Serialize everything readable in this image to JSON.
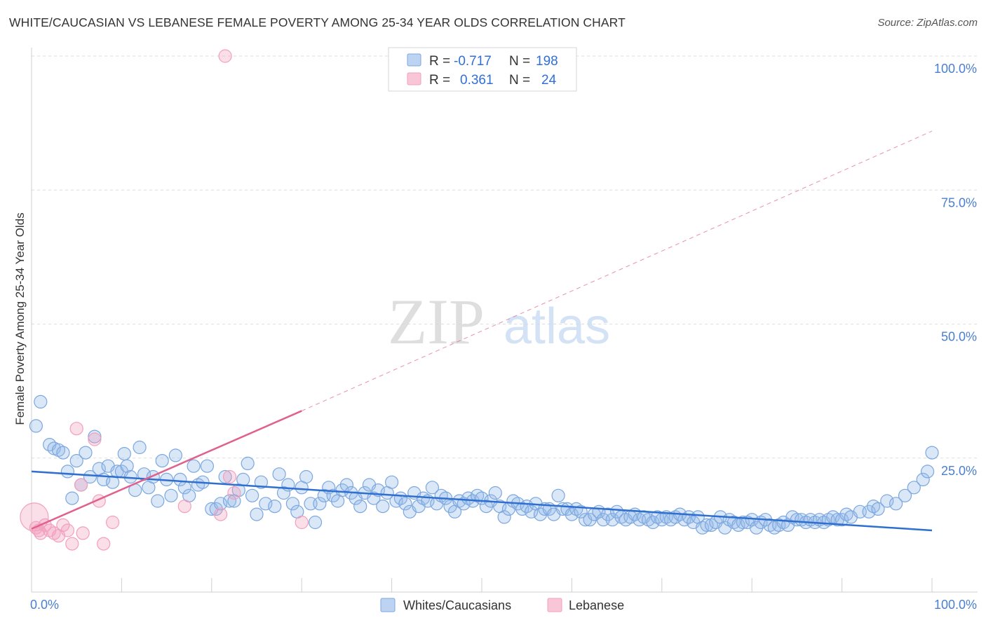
{
  "title": "WHITE/CAUCASIAN VS LEBANESE FEMALE POVERTY AMONG 25-34 YEAR OLDS CORRELATION CHART",
  "source": "Source: ZipAtlas.com",
  "watermark": {
    "zip": "ZIP",
    "atlas": "atlas"
  },
  "chart_data": {
    "type": "scatter",
    "title": "WHITE/CAUCASIAN VS LEBANESE FEMALE POVERTY AMONG 25-34 YEAR OLDS CORRELATION CHART",
    "xlabel": "",
    "ylabel": "Female Poverty Among 25-34 Year Olds",
    "xlim": [
      0,
      100
    ],
    "ylim": [
      0,
      100
    ],
    "x_tick_labels": [
      "0.0%",
      "100.0%"
    ],
    "y_ticks": [
      {
        "value": 25,
        "label": "25.0%"
      },
      {
        "value": 50,
        "label": "50.0%"
      },
      {
        "value": 75,
        "label": "75.0%"
      },
      {
        "value": 100,
        "label": "100.0%"
      }
    ],
    "grid": "horizontal-dashed",
    "legend_position": "top-center",
    "stats": [
      {
        "r_label": "R =",
        "r_value": "-0.717",
        "n_label": "N =",
        "n_value": "198"
      },
      {
        "r_label": "R =",
        "r_value": "0.361",
        "n_label": "N =",
        "n_value": "24"
      }
    ],
    "series": [
      {
        "name": "Whites/Caucasians",
        "color": "#7ba7e0",
        "line_color": "#2f6fd0",
        "trend": {
          "x0": 0,
          "y0": 22.5,
          "x1": 100,
          "y1": 11.5
        },
        "points": [
          [
            0.5,
            31
          ],
          [
            1,
            35.5
          ],
          [
            2,
            27.5
          ],
          [
            2.5,
            26.8
          ],
          [
            3,
            26.5
          ],
          [
            3.5,
            26
          ],
          [
            4,
            22.5
          ],
          [
            4.5,
            17.5
          ],
          [
            5,
            24.5
          ],
          [
            5.5,
            20
          ],
          [
            6,
            26
          ],
          [
            6.5,
            21.5
          ],
          [
            7,
            29
          ],
          [
            7.5,
            23
          ],
          [
            8,
            21
          ],
          [
            8.5,
            23.5
          ],
          [
            9,
            20.5
          ],
          [
            9.5,
            22.5
          ],
          [
            10,
            22.5
          ],
          [
            10.3,
            25.8
          ],
          [
            10.6,
            23.5
          ],
          [
            11,
            21.5
          ],
          [
            11.5,
            19
          ],
          [
            12,
            27
          ],
          [
            12.5,
            22
          ],
          [
            13,
            19.5
          ],
          [
            13.5,
            21.5
          ],
          [
            14,
            17
          ],
          [
            14.5,
            24.5
          ],
          [
            15,
            21
          ],
          [
            15.5,
            18
          ],
          [
            16,
            25.5
          ],
          [
            16.5,
            21
          ],
          [
            17,
            19.5
          ],
          [
            17.5,
            18
          ],
          [
            18,
            23.5
          ],
          [
            18.5,
            20
          ],
          [
            19,
            20.5
          ],
          [
            19.5,
            23.5
          ],
          [
            20,
            15.5
          ],
          [
            20.5,
            15.5
          ],
          [
            21,
            16.5
          ],
          [
            21.5,
            21.5
          ],
          [
            22,
            17
          ],
          [
            22.5,
            17
          ],
          [
            23,
            19
          ],
          [
            23.5,
            21
          ],
          [
            24,
            24
          ],
          [
            24.5,
            18
          ],
          [
            25,
            14.5
          ],
          [
            25.5,
            20.5
          ],
          [
            26,
            16.5
          ],
          [
            27,
            16
          ],
          [
            27.5,
            22
          ],
          [
            28,
            18.5
          ],
          [
            28.5,
            20
          ],
          [
            29,
            16.5
          ],
          [
            29.5,
            15
          ],
          [
            30,
            19.5
          ],
          [
            30.5,
            21.5
          ],
          [
            31,
            16.5
          ],
          [
            31.5,
            13
          ],
          [
            32,
            16.5
          ],
          [
            32.5,
            18
          ],
          [
            33,
            19.5
          ],
          [
            33.5,
            18
          ],
          [
            34,
            17
          ],
          [
            34.5,
            19
          ],
          [
            35,
            20
          ],
          [
            35.5,
            18.5
          ],
          [
            36,
            17.5
          ],
          [
            36.5,
            16
          ],
          [
            37,
            18.5
          ],
          [
            37.5,
            20
          ],
          [
            38,
            17.5
          ],
          [
            38.5,
            19
          ],
          [
            39,
            16
          ],
          [
            39.5,
            18.5
          ],
          [
            40,
            20.5
          ],
          [
            40.5,
            17
          ],
          [
            41,
            17.5
          ],
          [
            41.5,
            16.5
          ],
          [
            42,
            15
          ],
          [
            42.5,
            18.5
          ],
          [
            43,
            16
          ],
          [
            43.5,
            17.5
          ],
          [
            44,
            17
          ],
          [
            44.5,
            19.5
          ],
          [
            45,
            16.5
          ],
          [
            45.5,
            18
          ],
          [
            46,
            17.5
          ],
          [
            46.5,
            16
          ],
          [
            47,
            15
          ],
          [
            47.5,
            17
          ],
          [
            48,
            16.5
          ],
          [
            48.5,
            17.5
          ],
          [
            49,
            17
          ],
          [
            49.5,
            18
          ],
          [
            50,
            17.5
          ],
          [
            50.5,
            16
          ],
          [
            51,
            17
          ],
          [
            51.5,
            18.5
          ],
          [
            52,
            16
          ],
          [
            52.5,
            14
          ],
          [
            53,
            15.5
          ],
          [
            53.5,
            17
          ],
          [
            54,
            16.5
          ],
          [
            54.5,
            15.5
          ],
          [
            55,
            16
          ],
          [
            55.5,
            15
          ],
          [
            56,
            16.5
          ],
          [
            56.5,
            14.5
          ],
          [
            57,
            15.5
          ],
          [
            57.5,
            15.5
          ],
          [
            58,
            14.5
          ],
          [
            58.5,
            18
          ],
          [
            59,
            15.5
          ],
          [
            59.5,
            15.5
          ],
          [
            60,
            14.5
          ],
          [
            60.5,
            15.5
          ],
          [
            61,
            15
          ],
          [
            61.5,
            13.5
          ],
          [
            62,
            13.5
          ],
          [
            62.5,
            14.5
          ],
          [
            63,
            15
          ],
          [
            63.5,
            13.5
          ],
          [
            64,
            14.5
          ],
          [
            64.5,
            13.5
          ],
          [
            65,
            15
          ],
          [
            65.5,
            14
          ],
          [
            66,
            13.5
          ],
          [
            66.5,
            14
          ],
          [
            67,
            14.5
          ],
          [
            67.5,
            13.5
          ],
          [
            68,
            14
          ],
          [
            68.5,
            13.5
          ],
          [
            69,
            13
          ],
          [
            69.5,
            14
          ],
          [
            70,
            13.5
          ],
          [
            70.5,
            14
          ],
          [
            71,
            13.5
          ],
          [
            71.5,
            14
          ],
          [
            72,
            14.5
          ],
          [
            72.5,
            13.5
          ],
          [
            73,
            14
          ],
          [
            73.5,
            13
          ],
          [
            74,
            14
          ],
          [
            74.5,
            12
          ],
          [
            75,
            12.5
          ],
          [
            75.5,
            12.5
          ],
          [
            76,
            13
          ],
          [
            76.5,
            14
          ],
          [
            77,
            12
          ],
          [
            77.5,
            13.5
          ],
          [
            78,
            13
          ],
          [
            78.5,
            12.5
          ],
          [
            79,
            13
          ],
          [
            79.5,
            13
          ],
          [
            80,
            13.5
          ],
          [
            80.5,
            12
          ],
          [
            81,
            13
          ],
          [
            81.5,
            13.5
          ],
          [
            82,
            12.5
          ],
          [
            82.5,
            12
          ],
          [
            83,
            12.5
          ],
          [
            83.5,
            13
          ],
          [
            84,
            12.5
          ],
          [
            84.5,
            14
          ],
          [
            85,
            13.5
          ],
          [
            85.5,
            13.5
          ],
          [
            86,
            13
          ],
          [
            86.5,
            13.5
          ],
          [
            87,
            13
          ],
          [
            87.5,
            13.5
          ],
          [
            88,
            13
          ],
          [
            88.5,
            13.5
          ],
          [
            89,
            14
          ],
          [
            89.5,
            13.5
          ],
          [
            90,
            13.5
          ],
          [
            90.5,
            14.5
          ],
          [
            91,
            14
          ],
          [
            92,
            15
          ],
          [
            93,
            15
          ],
          [
            93.5,
            16
          ],
          [
            94,
            15.5
          ],
          [
            95,
            17
          ],
          [
            96,
            16.5
          ],
          [
            97,
            18
          ],
          [
            98,
            19.5
          ],
          [
            99,
            21
          ],
          [
            99.5,
            22.5
          ],
          [
            100,
            26
          ]
        ]
      },
      {
        "name": "Lebanese",
        "color": "#f2a0bc",
        "line_color": "#e0608e",
        "trend": {
          "x0": 0,
          "y0": 11.8,
          "x1": 30,
          "y1": 33.8
        },
        "trend_extension": {
          "x1": 100,
          "y1": 86
        },
        "points": [
          [
            0.3,
            14
          ],
          [
            0.5,
            12
          ],
          [
            0.8,
            11.5
          ],
          [
            1,
            11
          ],
          [
            1.5,
            12.5
          ],
          [
            2,
            11.5
          ],
          [
            2.5,
            11
          ],
          [
            3,
            10.5
          ],
          [
            3.5,
            12.5
          ],
          [
            4,
            11.5
          ],
          [
            4.5,
            9
          ],
          [
            5,
            30.5
          ],
          [
            5.5,
            20
          ],
          [
            5.7,
            11
          ],
          [
            7,
            28.5
          ],
          [
            7.5,
            17
          ],
          [
            8,
            9
          ],
          [
            9,
            13
          ],
          [
            17,
            16
          ],
          [
            21,
            14.5
          ],
          [
            22,
            21.5
          ],
          [
            22.5,
            18.5
          ],
          [
            21.5,
            100
          ],
          [
            30,
            13
          ]
        ]
      }
    ]
  }
}
